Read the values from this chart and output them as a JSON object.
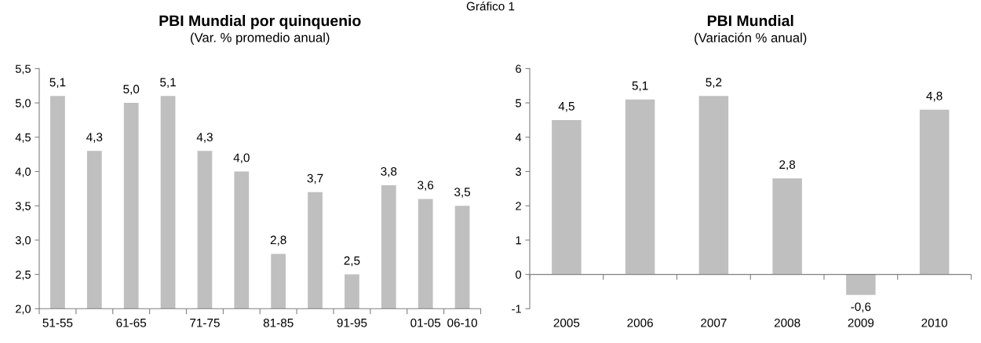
{
  "chart_data": [
    {
      "type": "bar",
      "title": "PBI Mundial por quinquenio",
      "subtitle": "(Var. % promedio anual)",
      "annotations": [
        "Gráfico 1"
      ],
      "categories": [
        "51-55",
        null,
        "61-65",
        null,
        "71-75",
        null,
        "81-85",
        null,
        "91-95",
        null,
        "01-05",
        "06-10"
      ],
      "values": [
        5.1,
        4.3,
        5.0,
        5.1,
        4.3,
        4.0,
        2.8,
        3.7,
        2.5,
        3.8,
        3.6,
        3.5
      ],
      "value_labels": [
        "5,1",
        "4,3",
        "5,0",
        "5,1",
        "4,3",
        "4,0",
        "2,8",
        "3,7",
        "2,5",
        "3,8",
        "3,6",
        "3,5"
      ],
      "color": "#bfbfbf",
      "ylim": [
        2.0,
        5.5
      ],
      "yticks": [
        {
          "value": 2.0,
          "label": "2,0"
        },
        {
          "value": 2.5,
          "label": "2,5"
        },
        {
          "value": 3.0,
          "label": "3,0"
        },
        {
          "value": 3.5,
          "label": "3,5"
        },
        {
          "value": 4.0,
          "label": "4,0"
        },
        {
          "value": 4.5,
          "label": "4,5"
        },
        {
          "value": 5.0,
          "label": "5,0"
        },
        {
          "value": 5.5,
          "label": "5,5"
        }
      ],
      "grid": false,
      "legend": false
    },
    {
      "type": "bar",
      "title": "PBI Mundial",
      "subtitle": "(Variación % anual)",
      "categories": [
        "2005",
        "2006",
        "2007",
        "2008",
        "2009",
        "2010"
      ],
      "values": [
        4.5,
        5.1,
        5.2,
        2.8,
        -0.6,
        4.8
      ],
      "value_labels": [
        "4,5",
        "5,1",
        "5,2",
        "2,8",
        "-0,6",
        "4,8"
      ],
      "color": "#bfbfbf",
      "ylim": [
        -1,
        6
      ],
      "yticks": [
        {
          "value": -1,
          "label": "-1"
        },
        0,
        1,
        2,
        3,
        4,
        5,
        6
      ],
      "ref_lines": [
        {
          "axis": "y",
          "value": 0,
          "color": "#808080"
        }
      ],
      "grid": false,
      "legend": false
    }
  ]
}
